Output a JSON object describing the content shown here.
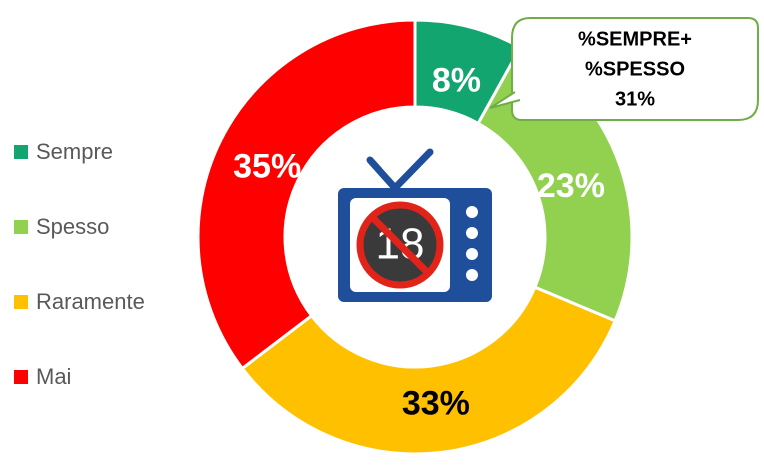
{
  "chart_data": {
    "type": "donut",
    "categories": [
      "Sempre",
      "Spesso",
      "Raramente",
      "Mai"
    ],
    "values": [
      8,
      23,
      33,
      35
    ],
    "value_labels": [
      "8%",
      "23%",
      "33%",
      "35%"
    ],
    "colors": [
      "#13a56f",
      "#92d050",
      "#ffc000",
      "#ff0000"
    ],
    "label_colors": [
      "#ffffff",
      "#ffffff",
      "#000000",
      "#ffffff"
    ],
    "legend": "left",
    "annotation": {
      "lines": [
        "%SEMPRE+",
        "%SPESSO",
        "31%"
      ]
    },
    "center_icon_label": "18"
  }
}
